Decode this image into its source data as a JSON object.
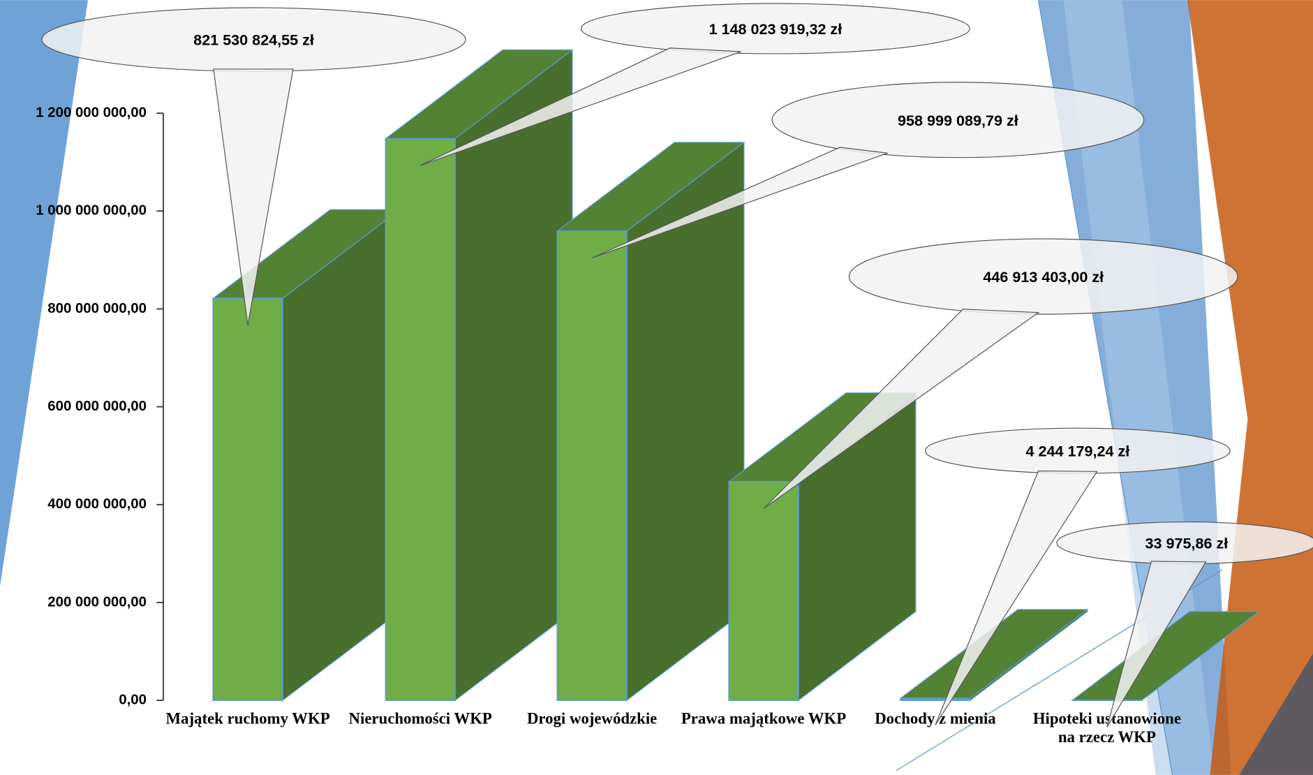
{
  "chart_data": {
    "type": "bar3d",
    "categories": [
      "Majątek ruchomy WKP",
      "Nieruchomości WKP",
      "Drogi wojewódzkie",
      "Prawa majątkowe WKP",
      "Dochody z mienia",
      "Hipoteki ustanowione na rzecz WKP"
    ],
    "values": [
      821530824.55,
      1148023919.32,
      958999089.79,
      446913403.0,
      4244179.24,
      33975.86
    ],
    "value_labels": [
      "821 530 824,55 zł",
      "1 148 023 919,32 zł",
      "958 999 089,79 zł",
      "446 913 403,00 zł",
      "4 244 179,24 zł",
      "33 975,86 zł"
    ],
    "color": "#70ad47",
    "ylim": [
      0,
      1200000000
    ],
    "yticks": [
      {
        "value": 0,
        "label": "0,00"
      },
      {
        "value": 200000000,
        "label": "200 000 000,00"
      },
      {
        "value": 400000000,
        "label": "400 000 000,00"
      },
      {
        "value": 600000000,
        "label": "600 000 000,00"
      },
      {
        "value": 800000000,
        "label": "800 000 000,00"
      },
      {
        "value": 1000000000,
        "label": "1 000 000 000,00"
      },
      {
        "value": 1200000000,
        "label": "1 200 000 000,00"
      }
    ],
    "grid": false
  }
}
